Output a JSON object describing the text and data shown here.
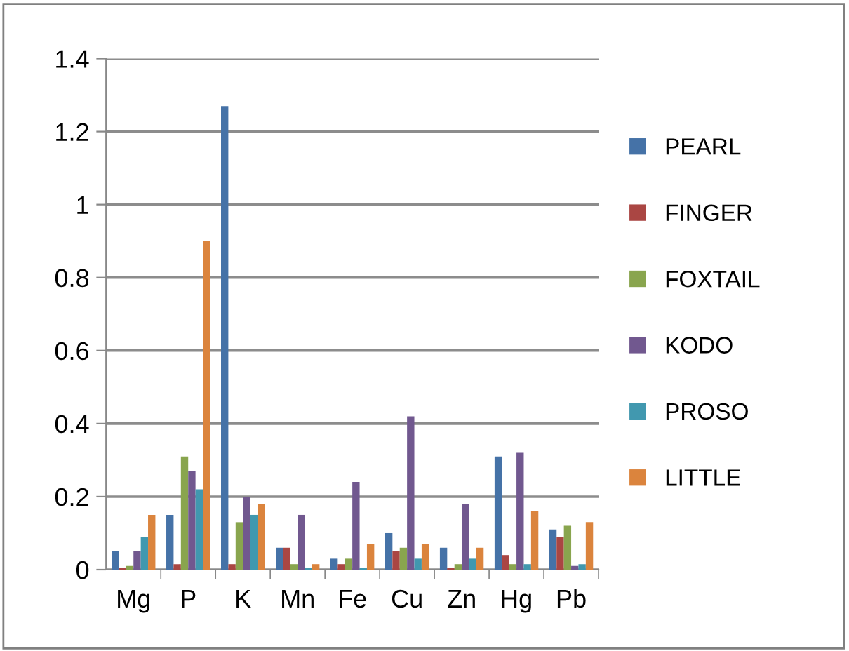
{
  "chart_data": {
    "type": "bar",
    "categories": [
      "Mg",
      "P",
      "K",
      "Mn",
      "Fe",
      "Cu",
      "Zn",
      "Hg",
      "Pb"
    ],
    "series": [
      {
        "name": "PEARL",
        "color": "#4572a7",
        "values": [
          0.05,
          0.15,
          1.27,
          0.06,
          0.03,
          0.1,
          0.06,
          0.31,
          0.11
        ]
      },
      {
        "name": "FINGER",
        "color": "#aa4643",
        "values": [
          0.005,
          0.015,
          0.015,
          0.06,
          0.015,
          0.05,
          0.005,
          0.04,
          0.09
        ]
      },
      {
        "name": "FOXTAIL",
        "color": "#89a54e",
        "values": [
          0.01,
          0.31,
          0.13,
          0.015,
          0.03,
          0.06,
          0.015,
          0.015,
          0.12
        ]
      },
      {
        "name": "KODO",
        "color": "#71588f",
        "values": [
          0.05,
          0.27,
          0.2,
          0.15,
          0.24,
          0.42,
          0.18,
          0.32,
          0.01
        ]
      },
      {
        "name": "PROSO",
        "color": "#4198af",
        "values": [
          0.09,
          0.22,
          0.15,
          0.005,
          0.005,
          0.03,
          0.03,
          0.015,
          0.015
        ]
      },
      {
        "name": "LITTLE",
        "color": "#db843d",
        "values": [
          0.15,
          0.9,
          0.18,
          0.015,
          0.07,
          0.07,
          0.06,
          0.16,
          0.13
        ]
      }
    ],
    "ylim": [
      0,
      1.4
    ],
    "yticks": [
      0,
      0.2,
      0.4,
      0.6,
      0.8,
      1,
      1.2,
      1.4
    ],
    "grid": "y",
    "legend": "right"
  }
}
